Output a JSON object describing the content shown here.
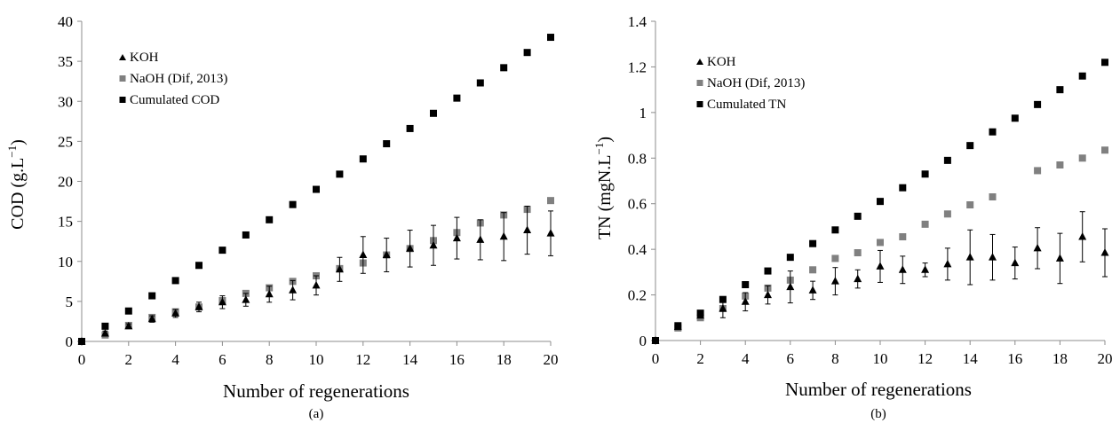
{
  "chart_data": [
    {
      "type": "scatter",
      "caption": "(a)",
      "xlabel": "Number of regenerations",
      "ylabel_main": "COD (g.L",
      "ylabel_sup": "−1",
      "ylabel_close": ")",
      "xlim": [
        0,
        20
      ],
      "ylim": [
        0,
        40
      ],
      "xticks": [
        0,
        2,
        4,
        6,
        8,
        10,
        12,
        14,
        16,
        18,
        20
      ],
      "yticks": [
        0,
        5,
        10,
        15,
        20,
        25,
        30,
        35,
        40
      ],
      "legend_position": "top-left",
      "series": [
        {
          "name": "KOH",
          "marker": "triangle",
          "color": "#000000",
          "points": [
            {
              "x": 0,
              "y": 0,
              "err": 0
            },
            {
              "x": 1,
              "y": 1.0,
              "err": 0.3
            },
            {
              "x": 2,
              "y": 1.9,
              "err": 0.3
            },
            {
              "x": 3,
              "y": 2.8,
              "err": 0.4
            },
            {
              "x": 4,
              "y": 3.5,
              "err": 0.5
            },
            {
              "x": 5,
              "y": 4.3,
              "err": 0.6
            },
            {
              "x": 6,
              "y": 4.9,
              "err": 0.8
            },
            {
              "x": 7,
              "y": 5.2,
              "err": 0.8
            },
            {
              "x": 8,
              "y": 5.9,
              "err": 1.0
            },
            {
              "x": 9,
              "y": 6.4,
              "err": 1.2
            },
            {
              "x": 10,
              "y": 7.0,
              "err": 1.2
            },
            {
              "x": 11,
              "y": 9.0,
              "err": 1.5
            },
            {
              "x": 12,
              "y": 10.8,
              "err": 2.3
            },
            {
              "x": 13,
              "y": 10.8,
              "err": 2.1
            },
            {
              "x": 14,
              "y": 11.6,
              "err": 2.3
            },
            {
              "x": 15,
              "y": 12.0,
              "err": 2.5
            },
            {
              "x": 16,
              "y": 12.9,
              "err": 2.6
            },
            {
              "x": 17,
              "y": 12.7,
              "err": 2.5
            },
            {
              "x": 18,
              "y": 13.1,
              "err": 3.0
            },
            {
              "x": 19,
              "y": 13.9,
              "err": 3.0
            },
            {
              "x": 20,
              "y": 13.5,
              "err": 2.8
            }
          ]
        },
        {
          "name": "NaOH (Dif, 2013)",
          "marker": "square",
          "color": "#808080",
          "points": [
            {
              "x": 0,
              "y": 0
            },
            {
              "x": 1,
              "y": 0.8
            },
            {
              "x": 2,
              "y": 2.0
            },
            {
              "x": 3,
              "y": 3.0
            },
            {
              "x": 4,
              "y": 3.7
            },
            {
              "x": 5,
              "y": 4.3
            },
            {
              "x": 6,
              "y": 5.1
            },
            {
              "x": 7,
              "y": 6.0
            },
            {
              "x": 8,
              "y": 6.7
            },
            {
              "x": 9,
              "y": 7.5
            },
            {
              "x": 10,
              "y": 8.2
            },
            {
              "x": 11,
              "y": 9.1
            },
            {
              "x": 12,
              "y": 9.8
            },
            {
              "x": 13,
              "y": 10.8
            },
            {
              "x": 14,
              "y": 11.6
            },
            {
              "x": 15,
              "y": 12.6
            },
            {
              "x": 16,
              "y": 13.6
            },
            {
              "x": 17,
              "y": 14.8
            },
            {
              "x": 18,
              "y": 15.8
            },
            {
              "x": 19,
              "y": 16.5
            },
            {
              "x": 20,
              "y": 17.6
            }
          ]
        },
        {
          "name": "Cumulated COD",
          "marker": "square",
          "color": "#000000",
          "points": [
            {
              "x": 0,
              "y": 0
            },
            {
              "x": 1,
              "y": 1.9
            },
            {
              "x": 2,
              "y": 3.8
            },
            {
              "x": 3,
              "y": 5.7
            },
            {
              "x": 4,
              "y": 7.6
            },
            {
              "x": 5,
              "y": 9.5
            },
            {
              "x": 6,
              "y": 11.4
            },
            {
              "x": 7,
              "y": 13.3
            },
            {
              "x": 8,
              "y": 15.2
            },
            {
              "x": 9,
              "y": 17.1
            },
            {
              "x": 10,
              "y": 19.0
            },
            {
              "x": 11,
              "y": 20.9
            },
            {
              "x": 12,
              "y": 22.8
            },
            {
              "x": 13,
              "y": 24.7
            },
            {
              "x": 14,
              "y": 26.6
            },
            {
              "x": 15,
              "y": 28.5
            },
            {
              "x": 16,
              "y": 30.4
            },
            {
              "x": 17,
              "y": 32.3
            },
            {
              "x": 18,
              "y": 34.2
            },
            {
              "x": 19,
              "y": 36.1
            },
            {
              "x": 20,
              "y": 38.0
            }
          ]
        }
      ]
    },
    {
      "type": "scatter",
      "caption": "(b)",
      "xlabel": "Number of regenerations",
      "ylabel_main": "TN (mgN.L",
      "ylabel_sup": "−1",
      "ylabel_close": ")",
      "xlim": [
        0,
        20
      ],
      "ylim": [
        0,
        1.4
      ],
      "xticks": [
        0,
        2,
        4,
        6,
        8,
        10,
        12,
        14,
        16,
        18,
        20
      ],
      "yticks": [
        0,
        0.2,
        0.4,
        0.6,
        0.8,
        1,
        1.2,
        1.4
      ],
      "legend_position": "top-left",
      "series": [
        {
          "name": "KOH",
          "marker": "triangle",
          "color": "#000000",
          "points": [
            {
              "x": 0,
              "y": 0,
              "err": 0
            },
            {
              "x": 1,
              "y": 0.06,
              "err": 0.01
            },
            {
              "x": 2,
              "y": 0.11,
              "err": 0.01
            },
            {
              "x": 3,
              "y": 0.14,
              "err": 0.04
            },
            {
              "x": 4,
              "y": 0.17,
              "err": 0.04
            },
            {
              "x": 5,
              "y": 0.2,
              "err": 0.04
            },
            {
              "x": 6,
              "y": 0.235,
              "err": 0.07
            },
            {
              "x": 7,
              "y": 0.22,
              "err": 0.04
            },
            {
              "x": 8,
              "y": 0.26,
              "err": 0.06
            },
            {
              "x": 9,
              "y": 0.27,
              "err": 0.04
            },
            {
              "x": 10,
              "y": 0.325,
              "err": 0.07
            },
            {
              "x": 11,
              "y": 0.31,
              "err": 0.06
            },
            {
              "x": 12,
              "y": 0.31,
              "err": 0.03
            },
            {
              "x": 13,
              "y": 0.335,
              "err": 0.07
            },
            {
              "x": 14,
              "y": 0.365,
              "err": 0.12
            },
            {
              "x": 15,
              "y": 0.365,
              "err": 0.1
            },
            {
              "x": 16,
              "y": 0.34,
              "err": 0.07
            },
            {
              "x": 17,
              "y": 0.405,
              "err": 0.09
            },
            {
              "x": 18,
              "y": 0.36,
              "err": 0.11
            },
            {
              "x": 19,
              "y": 0.455,
              "err": 0.11
            },
            {
              "x": 20,
              "y": 0.385,
              "err": 0.105
            }
          ]
        },
        {
          "name": "NaOH (Dif, 2013)",
          "marker": "square",
          "color": "#808080",
          "points": [
            {
              "x": 0,
              "y": 0
            },
            {
              "x": 1,
              "y": 0.055
            },
            {
              "x": 2,
              "y": 0.1
            },
            {
              "x": 3,
              "y": 0.14
            },
            {
              "x": 4,
              "y": 0.195
            },
            {
              "x": 5,
              "y": 0.23
            },
            {
              "x": 6,
              "y": 0.265
            },
            {
              "x": 7,
              "y": 0.31
            },
            {
              "x": 8,
              "y": 0.36
            },
            {
              "x": 9,
              "y": 0.385
            },
            {
              "x": 10,
              "y": 0.43
            },
            {
              "x": 11,
              "y": 0.455
            },
            {
              "x": 12,
              "y": 0.51
            },
            {
              "x": 13,
              "y": 0.555
            },
            {
              "x": 14,
              "y": 0.595
            },
            {
              "x": 15,
              "y": 0.63
            },
            {
              "x": 17,
              "y": 0.745
            },
            {
              "x": 18,
              "y": 0.77
            },
            {
              "x": 19,
              "y": 0.8
            },
            {
              "x": 20,
              "y": 0.835
            }
          ]
        },
        {
          "name": "Cumulated TN",
          "marker": "square",
          "color": "#000000",
          "points": [
            {
              "x": 0,
              "y": 0
            },
            {
              "x": 1,
              "y": 0.065
            },
            {
              "x": 2,
              "y": 0.12
            },
            {
              "x": 3,
              "y": 0.18
            },
            {
              "x": 4,
              "y": 0.245
            },
            {
              "x": 5,
              "y": 0.305
            },
            {
              "x": 6,
              "y": 0.365
            },
            {
              "x": 7,
              "y": 0.425
            },
            {
              "x": 8,
              "y": 0.485
            },
            {
              "x": 9,
              "y": 0.545
            },
            {
              "x": 10,
              "y": 0.61
            },
            {
              "x": 11,
              "y": 0.67
            },
            {
              "x": 12,
              "y": 0.73
            },
            {
              "x": 13,
              "y": 0.79
            },
            {
              "x": 14,
              "y": 0.855
            },
            {
              "x": 15,
              "y": 0.915
            },
            {
              "x": 16,
              "y": 0.975
            },
            {
              "x": 17,
              "y": 1.035
            },
            {
              "x": 18,
              "y": 1.1
            },
            {
              "x": 19,
              "y": 1.16
            },
            {
              "x": 20,
              "y": 1.22
            }
          ]
        }
      ]
    }
  ]
}
